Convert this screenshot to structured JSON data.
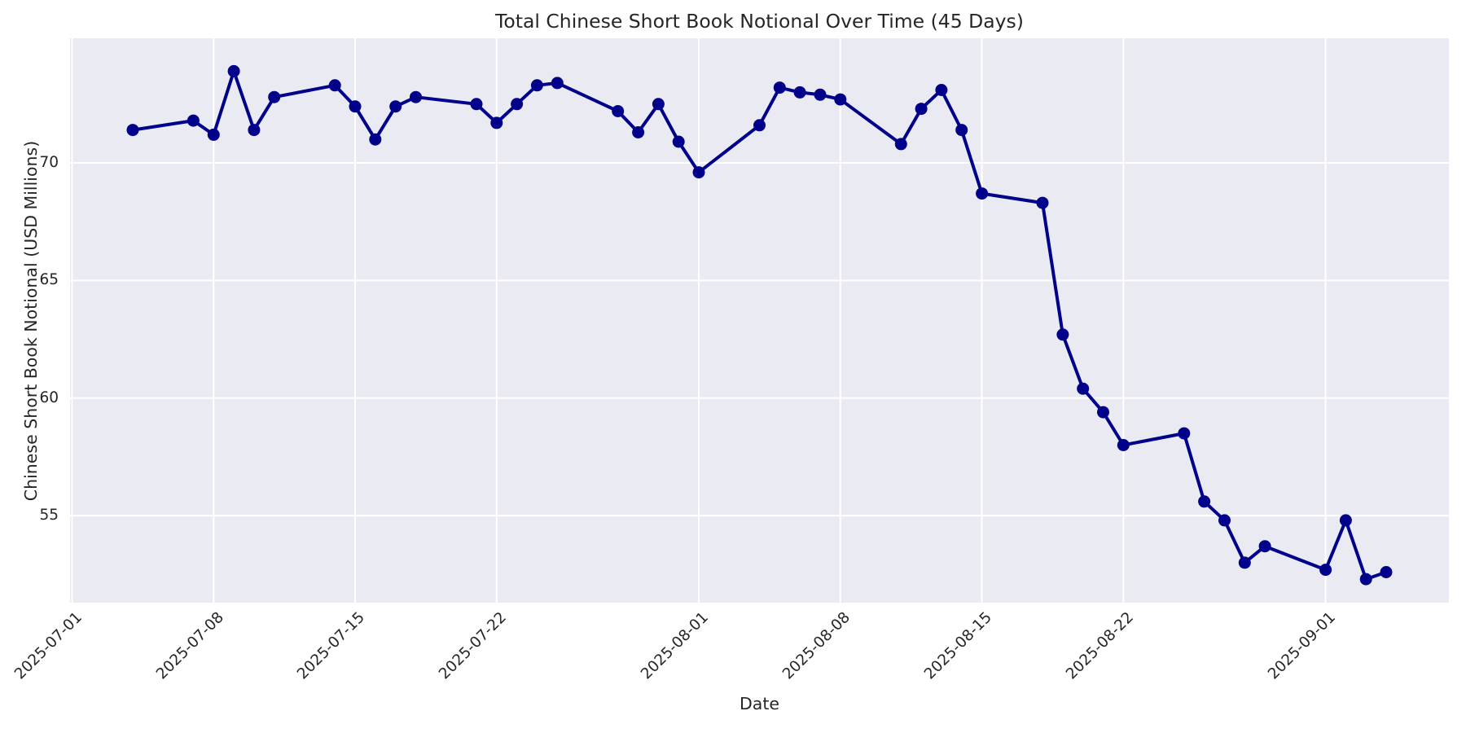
{
  "chart_data": {
    "type": "line",
    "title": "Total Chinese Short Book Notional Over Time (45 Days)",
    "xlabel": "Date",
    "ylabel": "Chinese Short Book Notional (USD Millions)",
    "series_name": "Total Chinese Short Book Notional",
    "x": [
      "2025-07-04",
      "2025-07-07",
      "2025-07-08",
      "2025-07-09",
      "2025-07-10",
      "2025-07-11",
      "2025-07-14",
      "2025-07-15",
      "2025-07-16",
      "2025-07-17",
      "2025-07-18",
      "2025-07-21",
      "2025-07-22",
      "2025-07-23",
      "2025-07-24",
      "2025-07-25",
      "2025-07-28",
      "2025-07-29",
      "2025-07-30",
      "2025-07-31",
      "2025-08-01",
      "2025-08-04",
      "2025-08-05",
      "2025-08-06",
      "2025-08-07",
      "2025-08-08",
      "2025-08-11",
      "2025-08-12",
      "2025-08-13",
      "2025-08-14",
      "2025-08-15",
      "2025-08-18",
      "2025-08-19",
      "2025-08-20",
      "2025-08-21",
      "2025-08-22",
      "2025-08-25",
      "2025-08-26",
      "2025-08-27",
      "2025-08-28",
      "2025-08-29",
      "2025-09-01",
      "2025-09-02",
      "2025-09-03",
      "2025-09-04"
    ],
    "values": [
      71.4,
      71.8,
      71.2,
      73.9,
      71.4,
      72.8,
      73.3,
      72.4,
      71.0,
      72.4,
      72.8,
      72.5,
      71.7,
      72.5,
      73.3,
      73.4,
      72.2,
      71.3,
      72.5,
      70.9,
      69.6,
      71.6,
      73.2,
      73.0,
      72.9,
      72.7,
      70.8,
      72.3,
      73.1,
      71.4,
      68.7,
      68.3,
      62.7,
      60.4,
      59.4,
      58.0,
      58.5,
      55.6,
      54.8,
      53.0,
      53.7,
      52.7,
      54.8,
      52.3,
      52.6
    ],
    "yticks": [
      55,
      60,
      65,
      70
    ],
    "xticks": [
      "2025-07-01",
      "2025-07-08",
      "2025-07-15",
      "2025-07-22",
      "2025-08-01",
      "2025-08-08",
      "2025-08-15",
      "2025-08-22",
      "2025-09-01"
    ],
    "ylim": [
      51.3,
      75.3
    ],
    "grid": true,
    "legend": "none",
    "line_color": "#00008B",
    "marker_color": "#00008B",
    "plot_bg_color": "#EAEAF2",
    "grid_color": "#FFFFFF"
  }
}
